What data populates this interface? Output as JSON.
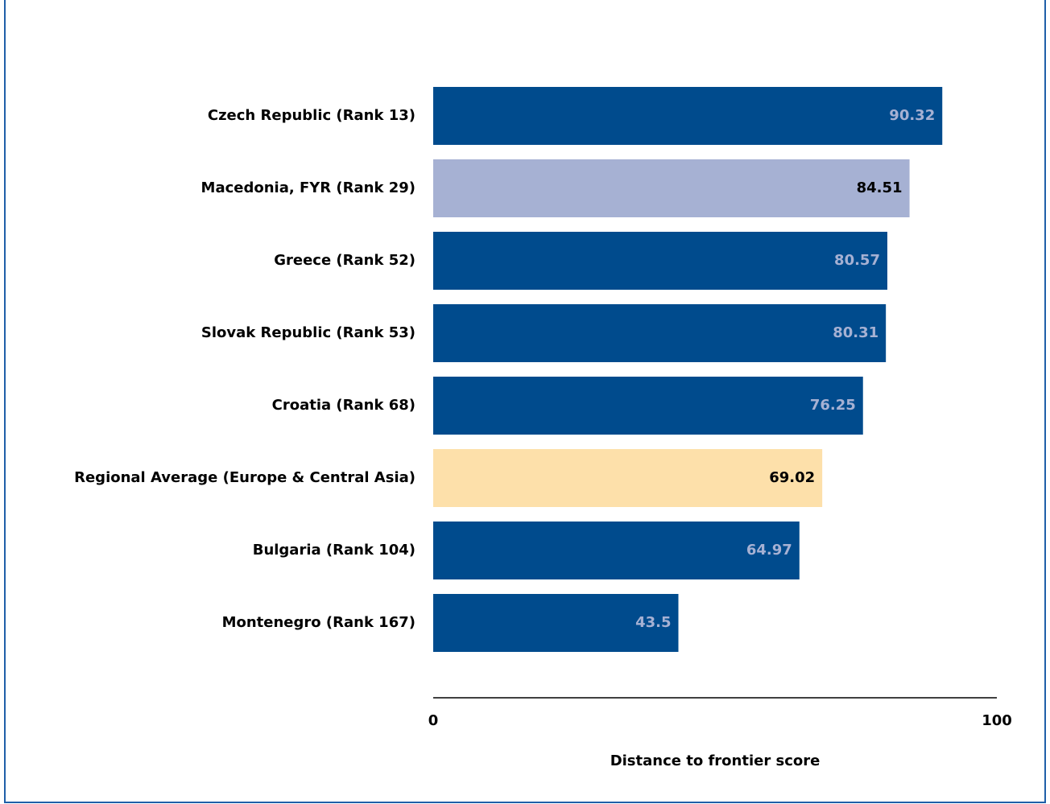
{
  "chart_data": {
    "type": "bar",
    "orientation": "horizontal",
    "categories": [
      "Czech Republic (Rank 13)",
      "Macedonia, FYR (Rank 29)",
      "Greece (Rank 52)",
      "Slovak Republic (Rank 53)",
      "Croatia (Rank 68)",
      "Regional Average (Europe & Central Asia)",
      "Bulgaria (Rank 104)",
      "Montenegro (Rank 167)"
    ],
    "values": [
      90.32,
      84.51,
      80.57,
      80.31,
      76.25,
      69.02,
      64.97,
      43.5
    ],
    "colors": [
      "#004b8d",
      "#a6b1d3",
      "#004b8d",
      "#004b8d",
      "#004b8d",
      "#fde0aa",
      "#004b8d",
      "#004b8d"
    ],
    "value_label_colors": [
      "#a6b1d3",
      "#000000",
      "#a6b1d3",
      "#a6b1d3",
      "#a6b1d3",
      "#000000",
      "#a6b1d3",
      "#a6b1d3"
    ],
    "xlim": [
      0,
      100
    ],
    "xticks": [
      0,
      100
    ],
    "xlabel": "Distance to frontier score"
  }
}
